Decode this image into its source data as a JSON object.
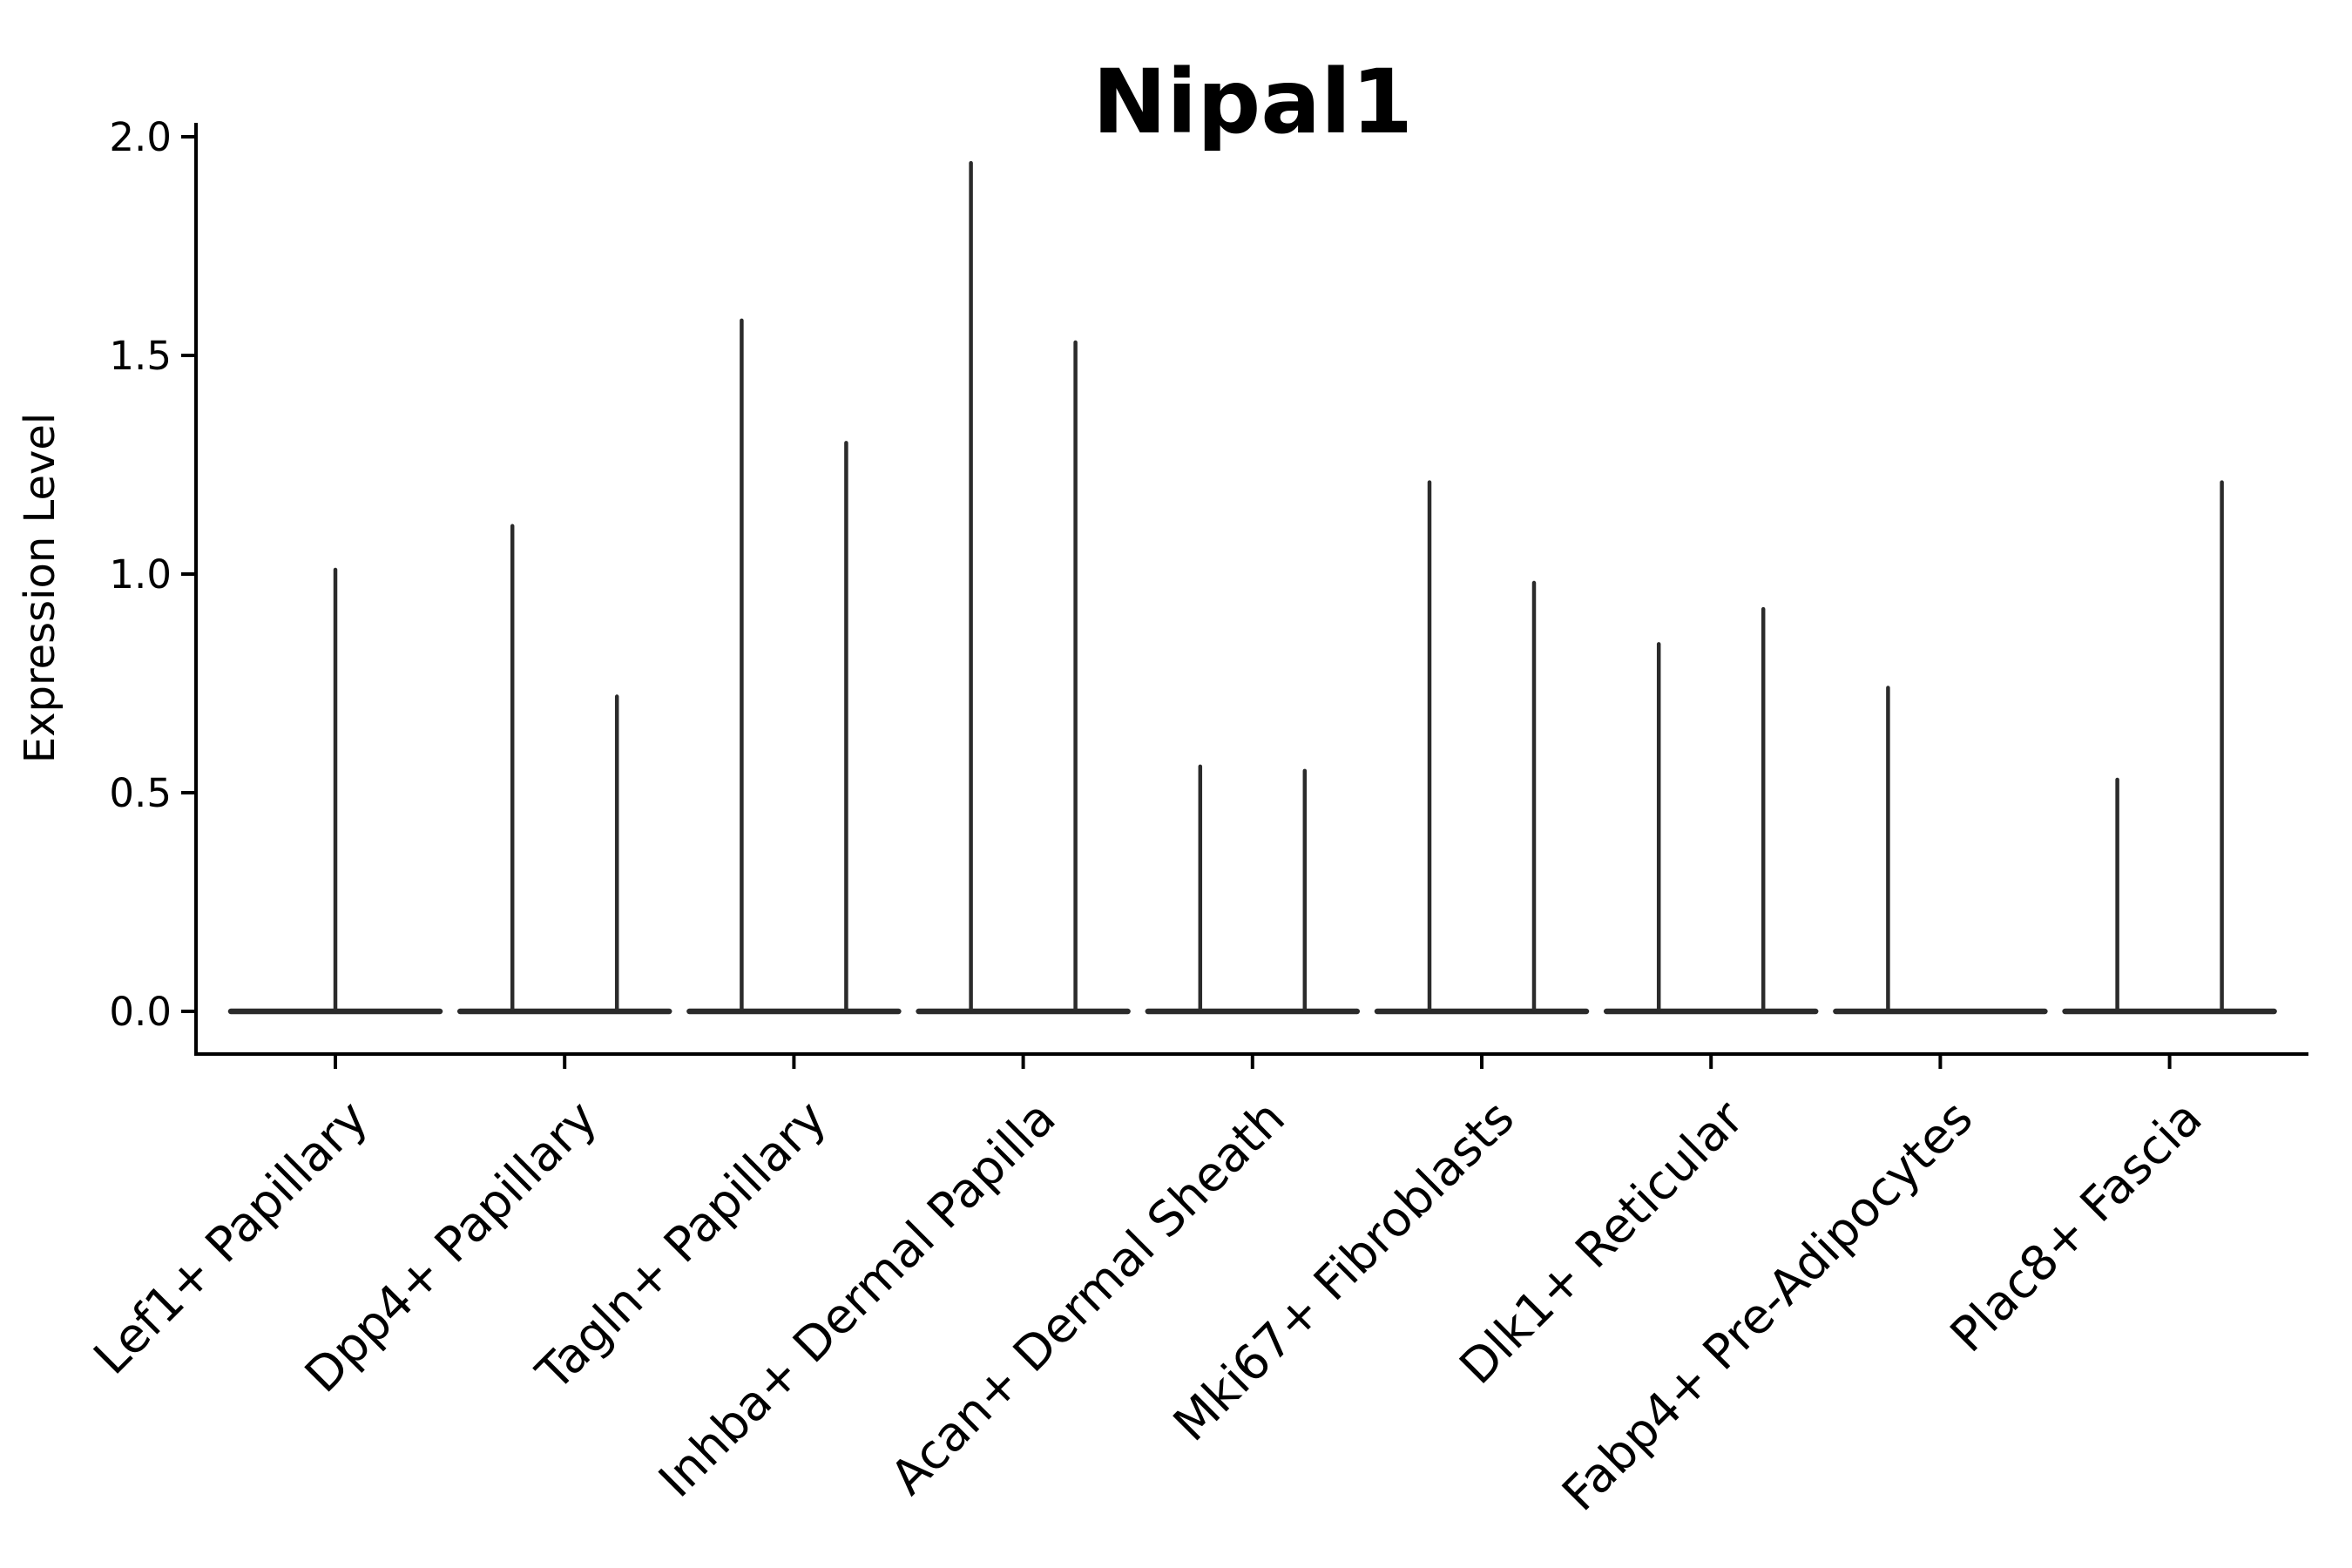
{
  "figure": {
    "background": "#ffffff"
  },
  "chart_data": {
    "type": "violin",
    "title": "Nipal1",
    "ylabel": "Expression Level",
    "xlabel": "",
    "ylim": [
      0.0,
      2.0
    ],
    "ytick_labels": [
      "0.0",
      "0.5",
      "1.0",
      "1.5",
      "2.0"
    ],
    "ytick_values": [
      0.0,
      0.5,
      1.0,
      1.5,
      2.0
    ],
    "grid": false,
    "legend": "none",
    "violin_color": "#2b2b2b",
    "axis_color": "#000000",
    "categories": [
      "Lef1+ Papillary",
      "Dpp4+ Papillary",
      "Tagln+ Papillary",
      "Inhba+ Dermal Papilla",
      "Acan+ Dermal Sheath",
      "Mki67+ Fibroblasts",
      "Dlk1+ Reticular",
      "Fabp4+ Pre-Adipocytes",
      "Plac8+ Fascia"
    ],
    "violins": [
      {
        "category": "Lef1+ Papillary",
        "tails": [
          {
            "slot": "center",
            "max": 1.01
          }
        ]
      },
      {
        "category": "Dpp4+ Papillary",
        "tails": [
          {
            "slot": "left",
            "max": 1.11
          },
          {
            "slot": "right",
            "max": 0.72
          }
        ]
      },
      {
        "category": "Tagln+ Papillary",
        "tails": [
          {
            "slot": "left",
            "max": 1.58
          },
          {
            "slot": "right",
            "max": 1.3
          }
        ]
      },
      {
        "category": "Inhba+ Dermal Papilla",
        "tails": [
          {
            "slot": "left",
            "max": 1.94
          },
          {
            "slot": "right",
            "max": 1.53
          }
        ]
      },
      {
        "category": "Acan+ Dermal Sheath",
        "tails": [
          {
            "slot": "left",
            "max": 0.56
          },
          {
            "slot": "right",
            "max": 0.55
          }
        ]
      },
      {
        "category": "Mki67+ Fibroblasts",
        "tails": [
          {
            "slot": "left",
            "max": 1.21
          },
          {
            "slot": "right",
            "max": 0.98
          }
        ]
      },
      {
        "category": "Dlk1+ Reticular",
        "tails": [
          {
            "slot": "left",
            "max": 0.84
          },
          {
            "slot": "right",
            "max": 0.92
          }
        ]
      },
      {
        "category": "Fabp4+ Pre-Adipocytes",
        "tails": [
          {
            "slot": "left",
            "max": 0.74
          }
        ]
      },
      {
        "category": "Plac8+ Fascia",
        "tails": [
          {
            "slot": "left",
            "max": 0.53
          },
          {
            "slot": "right",
            "max": 1.21
          }
        ]
      }
    ],
    "description": "Expression distributions are concentrated at 0 (flat violin baselines) with thin density tails rising to each group's maximum expression value."
  }
}
